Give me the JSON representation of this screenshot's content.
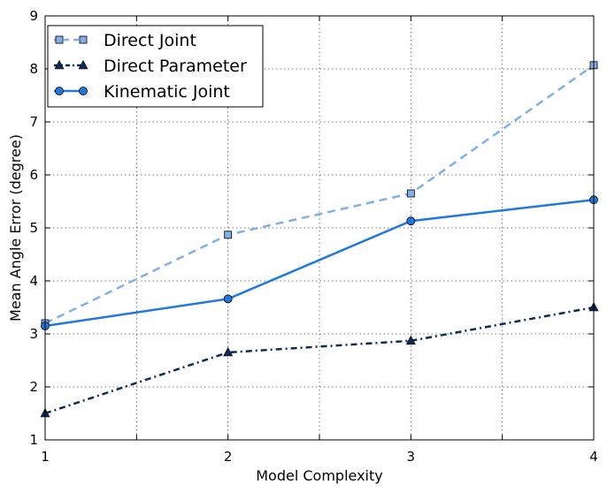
{
  "chart_data": {
    "type": "line",
    "title": "",
    "xlabel": "Model Complexity",
    "ylabel": "Mean Angle Error (degree)",
    "x": [
      1,
      2,
      3,
      4
    ],
    "xlim": [
      1,
      4
    ],
    "ylim": [
      1,
      9
    ],
    "x_ticks": [
      1,
      1.5,
      2,
      2.5,
      3,
      3.5,
      4
    ],
    "x_tick_labels": [
      "1",
      "",
      "2",
      "",
      "3",
      "",
      "4"
    ],
    "y_ticks": [
      1,
      2,
      3,
      4,
      5,
      6,
      7,
      8,
      9
    ],
    "y_tick_labels": [
      "1",
      "2",
      "3",
      "4",
      "5",
      "6",
      "7",
      "8",
      "9"
    ],
    "grid": true,
    "legend_position": "top-left",
    "series": [
      {
        "name": "Direct Joint",
        "values": [
          3.2,
          4.87,
          5.65,
          8.07
        ],
        "color": "#7fb0ec",
        "line_style": "dashed",
        "marker": "square"
      },
      {
        "name": "Direct Parameter",
        "values": [
          1.5,
          2.65,
          2.87,
          3.5
        ],
        "color": "#0e2a5c",
        "line_style": "dash-dot",
        "marker": "triangle"
      },
      {
        "name": "Kinematic Joint",
        "values": [
          3.15,
          3.66,
          5.13,
          5.53
        ],
        "color": "#1e78e0",
        "line_style": "solid",
        "marker": "circle"
      }
    ]
  }
}
